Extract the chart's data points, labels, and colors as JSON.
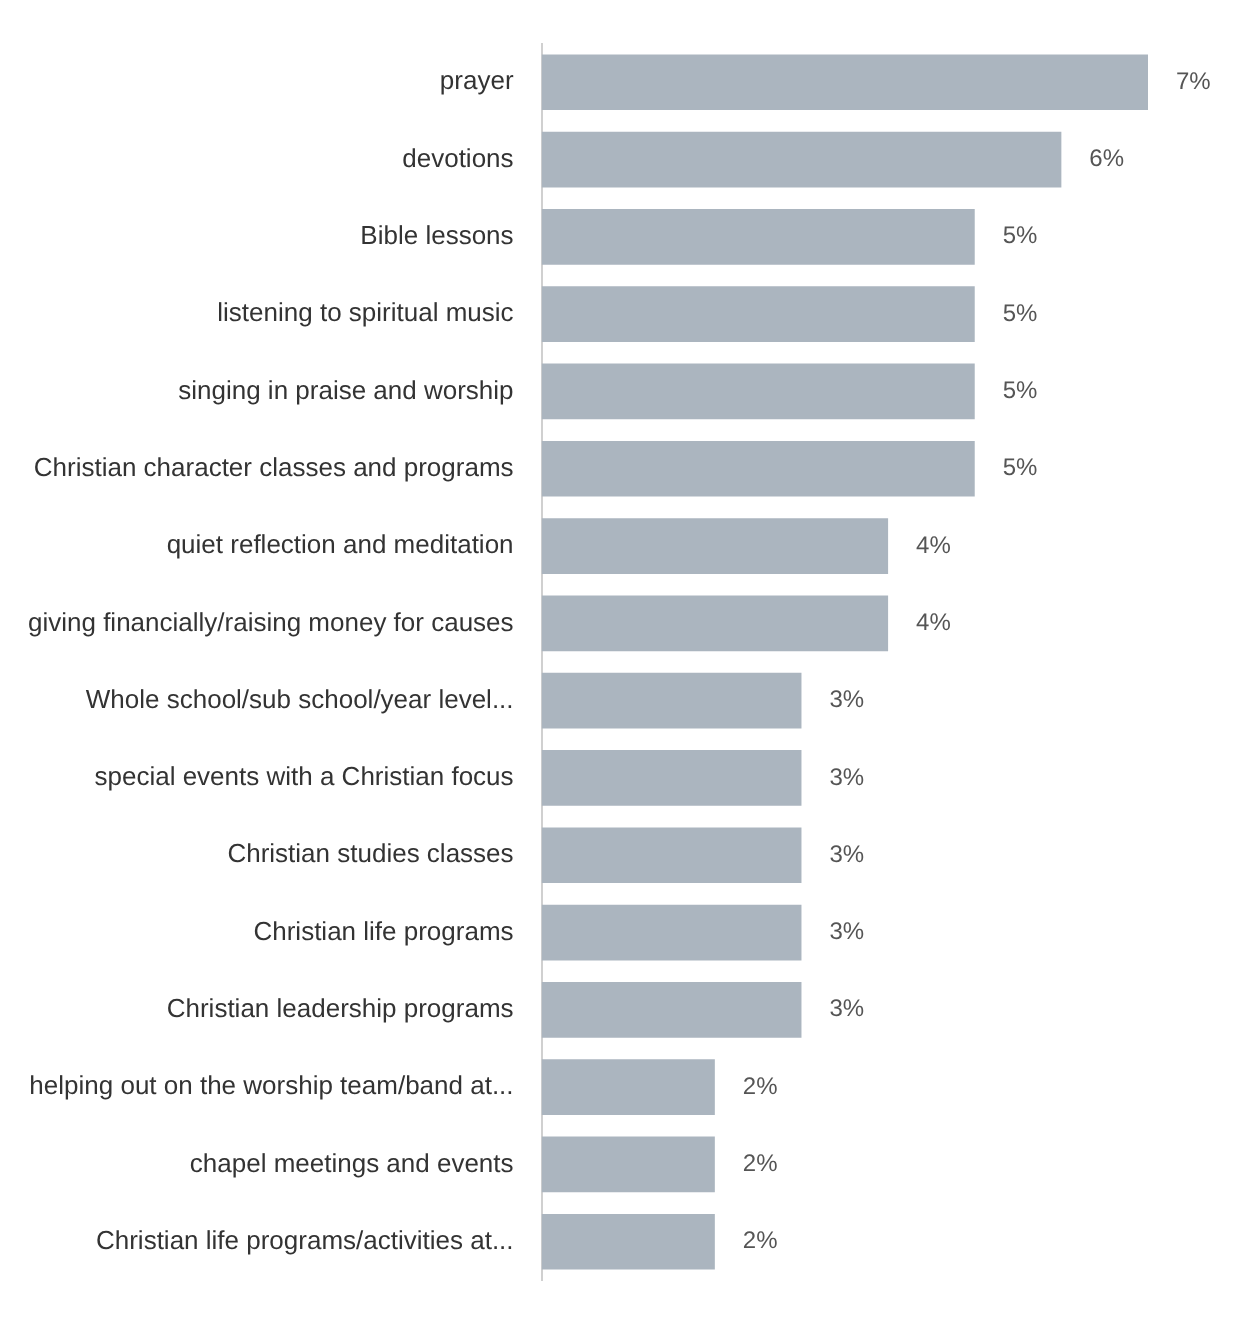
{
  "chart_data": {
    "type": "bar",
    "orientation": "horizontal",
    "categories": [
      "prayer",
      "devotions",
      "Bible lessons",
      "listening to spiritual music",
      "singing in praise and worship",
      "Christian character classes and programs",
      "quiet reflection and meditation",
      "giving financially/raising money for causes",
      "Whole school/sub school/year level...",
      "special events with a Christian focus",
      "Christian studies classes",
      "Christian life programs",
      "Christian leadership programs",
      "helping out on the worship team/band at...",
      "chapel meetings and events",
      "Christian life programs/activities at..."
    ],
    "values": [
      7,
      6,
      5,
      5,
      5,
      5,
      4,
      4,
      3,
      3,
      3,
      3,
      3,
      2,
      2,
      2
    ],
    "value_labels": [
      "7%",
      "6%",
      "5%",
      "5%",
      "5%",
      "5%",
      "4%",
      "4%",
      "3%",
      "3%",
      "3%",
      "3%",
      "3%",
      "2%",
      "2%",
      "2%"
    ],
    "color": "#abb5bf",
    "legend": false
  }
}
